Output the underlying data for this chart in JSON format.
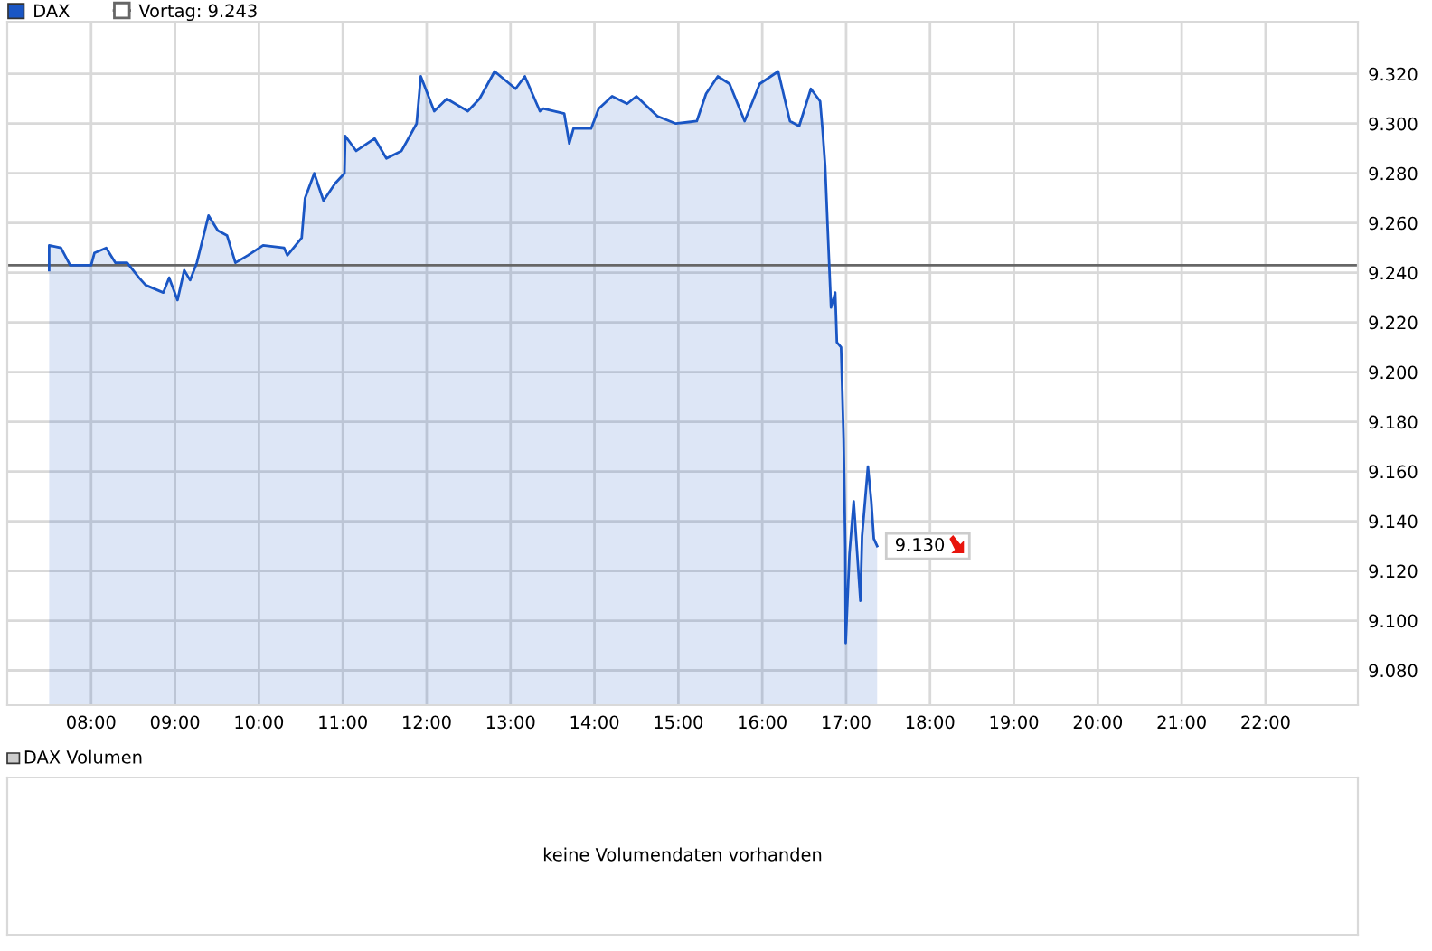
{
  "chart_data": [
    {
      "type": "area",
      "x": [
        7.5,
        7.5,
        7.64,
        7.75,
        8.0,
        8.04,
        8.18,
        8.29,
        8.43,
        8.57,
        8.65,
        8.86,
        8.93,
        9.03,
        9.11,
        9.18,
        9.26,
        9.4,
        9.51,
        9.62,
        9.72,
        9.87,
        10.05,
        10.3,
        10.34,
        10.51,
        10.55,
        10.66,
        10.77,
        10.91,
        11.02,
        11.03,
        11.16,
        11.38,
        11.52,
        11.7,
        11.88,
        11.93,
        12.09,
        12.24,
        12.49,
        12.63,
        12.81,
        13.06,
        13.17,
        13.35,
        13.39,
        13.64,
        13.7,
        13.75,
        13.96,
        14.05,
        14.21,
        14.39,
        14.5,
        14.75,
        14.97,
        15.22,
        15.33,
        15.47,
        15.61,
        15.79,
        15.97,
        16.19,
        16.33,
        16.44,
        16.58,
        16.69,
        16.72,
        16.75,
        16.78,
        16.82,
        16.87,
        16.89,
        16.94,
        16.97,
        16.99,
        16.995,
        17.04,
        17.09,
        17.17,
        17.19,
        17.26,
        17.3,
        17.33,
        17.37
      ],
      "series": [
        {
          "name": "DAX",
          "color": "#1a56c4",
          "values": [
            9241,
            9251,
            9250,
            9243,
            9243,
            9248,
            9250,
            9244,
            9244,
            9238,
            9235,
            9232,
            9238,
            9229,
            9241,
            9237,
            9244,
            9263,
            9257,
            9255,
            9244,
            9247,
            9251,
            9250,
            9247,
            9254,
            9270,
            9280,
            9269,
            9276,
            9280,
            9295,
            9289,
            9294,
            9286,
            9289,
            9300,
            9319,
            9305,
            9310,
            9305,
            9310,
            9321,
            9314,
            9319,
            9305,
            9306,
            9304,
            9292,
            9298,
            9298,
            9306,
            9311,
            9308,
            9311,
            9303,
            9300,
            9301,
            9312,
            9319,
            9316,
            9301,
            9316,
            9321,
            9301,
            9299,
            9314,
            9309,
            9297,
            9283,
            9258,
            9226,
            9232,
            9212,
            9210,
            9173,
            9129,
            9091,
            9127,
            9148,
            9108,
            9134,
            9162,
            9148,
            9133,
            9130
          ]
        }
      ],
      "xlim": [
        7.0,
        23.1
      ],
      "xticks": [
        {
          "value": 8,
          "label": "08:00"
        },
        {
          "value": 9,
          "label": "09:00"
        },
        {
          "value": 10,
          "label": "10:00"
        },
        {
          "value": 11,
          "label": "11:00"
        },
        {
          "value": 12,
          "label": "12:00"
        },
        {
          "value": 13,
          "label": "13:00"
        },
        {
          "value": 14,
          "label": "14:00"
        },
        {
          "value": 15,
          "label": "15:00"
        },
        {
          "value": 16,
          "label": "16:00"
        },
        {
          "value": 17,
          "label": "17:00"
        },
        {
          "value": 18,
          "label": "18:00"
        },
        {
          "value": 19,
          "label": "19:00"
        },
        {
          "value": 20,
          "label": "20:00"
        },
        {
          "value": 21,
          "label": "21:00"
        },
        {
          "value": 22,
          "label": "22:00"
        }
      ],
      "ylim": [
        9066,
        9341
      ],
      "yticks": [
        {
          "value": 9080,
          "label": "9.080"
        },
        {
          "value": 9100,
          "label": "9.100"
        },
        {
          "value": 9120,
          "label": "9.120"
        },
        {
          "value": 9140,
          "label": "9.140"
        },
        {
          "value": 9160,
          "label": "9.160"
        },
        {
          "value": 9180,
          "label": "9.180"
        },
        {
          "value": 9200,
          "label": "9.200"
        },
        {
          "value": 9220,
          "label": "9.220"
        },
        {
          "value": 9240,
          "label": "9.240"
        },
        {
          "value": 9260,
          "label": "9.260"
        },
        {
          "value": 9280,
          "label": "9.280"
        },
        {
          "value": 9300,
          "label": "9.300"
        },
        {
          "value": 9320,
          "label": "9.320"
        }
      ],
      "grid": true,
      "legend": "top left",
      "ref_lines": [
        {
          "axis": "y",
          "value": 9243,
          "label": "Vortag: 9.243",
          "color": "#666666"
        }
      ],
      "annotations": [
        {
          "text": "9.130",
          "x": 17.37,
          "y": 9130
        }
      ]
    },
    {
      "type": "other",
      "title": "DAX Volumen",
      "annotations": [
        "keine Volumendaten vorhanden"
      ]
    }
  ]
}
